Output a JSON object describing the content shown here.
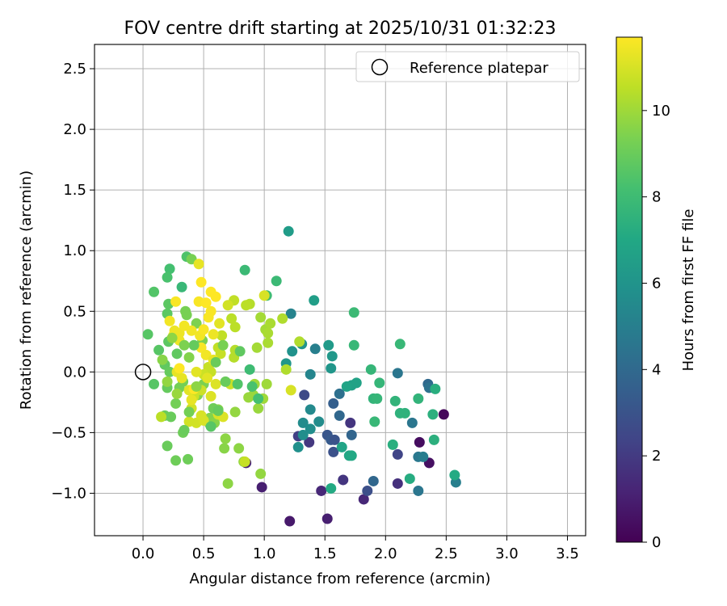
{
  "chart_data": {
    "type": "scatter",
    "title": "FOV centre drift starting at 2025/10/31 01:32:23",
    "xlabel": "Angular distance from reference (arcmin)",
    "ylabel": "Rotation from reference (arcmin)",
    "xlim": [
      -0.4,
      3.65
    ],
    "ylim": [
      -1.35,
      2.7
    ],
    "xticks": [
      0.0,
      0.5,
      1.0,
      1.5,
      2.0,
      2.5,
      3.0,
      3.5
    ],
    "xtick_labels": [
      "0.0",
      "0.5",
      "1.0",
      "1.5",
      "2.0",
      "2.5",
      "3.0",
      "3.5"
    ],
    "yticks": [
      -1.0,
      -0.5,
      0.0,
      0.5,
      1.0,
      1.5,
      2.0,
      2.5
    ],
    "ytick_labels": [
      "−1.0",
      "−0.5",
      "0.0",
      "0.5",
      "1.0",
      "1.5",
      "2.0",
      "2.5"
    ],
    "grid": true,
    "legend": {
      "position": "top-right",
      "entries": [
        "Reference platepar"
      ]
    },
    "reference_point": {
      "x": 0.0,
      "y": 0.0,
      "label": "Reference platepar"
    },
    "colorbar": {
      "label": "Hours from first FF file",
      "range": [
        0,
        11.7
      ],
      "colormap": "viridis",
      "ticks": [
        0,
        2,
        4,
        6,
        8,
        10
      ],
      "tick_labels": [
        "0",
        "2",
        "4",
        "6",
        "8",
        "10"
      ]
    },
    "points": [
      {
        "x": 2.48,
        "y": -0.35,
        "c": 0.2
      },
      {
        "x": 2.28,
        "y": -0.58,
        "c": 0.4
      },
      {
        "x": 2.36,
        "y": -0.75,
        "c": 0.5
      },
      {
        "x": 1.21,
        "y": -1.23,
        "c": 0.8
      },
      {
        "x": 1.52,
        "y": -1.21,
        "c": 1.0
      },
      {
        "x": 0.98,
        "y": -0.95,
        "c": 1.0
      },
      {
        "x": 1.47,
        "y": -0.98,
        "c": 1.3
      },
      {
        "x": 1.82,
        "y": -1.05,
        "c": 1.3
      },
      {
        "x": 0.85,
        "y": -0.75,
        "c": 1.2
      },
      {
        "x": 2.1,
        "y": -0.92,
        "c": 1.6
      },
      {
        "x": 1.65,
        "y": -0.89,
        "c": 1.8
      },
      {
        "x": 1.71,
        "y": -0.42,
        "c": 1.8
      },
      {
        "x": 1.37,
        "y": -0.58,
        "c": 1.9
      },
      {
        "x": 1.28,
        "y": -0.53,
        "c": 2.2
      },
      {
        "x": 2.1,
        "y": -0.68,
        "c": 2.4
      },
      {
        "x": 1.85,
        "y": -0.98,
        "c": 2.8
      },
      {
        "x": 1.33,
        "y": -0.19,
        "c": 2.6
      },
      {
        "x": 1.57,
        "y": -0.66,
        "c": 2.9
      },
      {
        "x": 1.52,
        "y": -0.52,
        "c": 3.1
      },
      {
        "x": 1.55,
        "y": -0.56,
        "c": 3.3
      },
      {
        "x": 1.58,
        "y": -0.56,
        "c": 3.0
      },
      {
        "x": 1.57,
        "y": -0.26,
        "c": 3.5
      },
      {
        "x": 1.72,
        "y": -0.52,
        "c": 3.8
      },
      {
        "x": 1.62,
        "y": -0.36,
        "c": 3.9
      },
      {
        "x": 1.9,
        "y": -0.9,
        "c": 3.9
      },
      {
        "x": 2.35,
        "y": -0.1,
        "c": 4.0
      },
      {
        "x": 1.62,
        "y": -0.18,
        "c": 4.3
      },
      {
        "x": 2.36,
        "y": -0.13,
        "c": 4.4
      },
      {
        "x": 2.1,
        "y": -0.01,
        "c": 4.6
      },
      {
        "x": 2.22,
        "y": -0.42,
        "c": 4.6
      },
      {
        "x": 2.27,
        "y": -0.98,
        "c": 4.6
      },
      {
        "x": 2.27,
        "y": -0.7,
        "c": 4.7
      },
      {
        "x": 2.31,
        "y": -0.7,
        "c": 4.9
      },
      {
        "x": 2.58,
        "y": -0.91,
        "c": 5.0
      },
      {
        "x": 1.42,
        "y": 0.19,
        "c": 5.0
      },
      {
        "x": 1.22,
        "y": 0.48,
        "c": 5.2
      },
      {
        "x": 1.38,
        "y": -0.02,
        "c": 5.3
      },
      {
        "x": 1.38,
        "y": -0.31,
        "c": 5.5
      },
      {
        "x": 1.32,
        "y": -0.42,
        "c": 5.6
      },
      {
        "x": 1.45,
        "y": -0.41,
        "c": 5.6
      },
      {
        "x": 1.38,
        "y": -0.47,
        "c": 5.7
      },
      {
        "x": 1.32,
        "y": -0.52,
        "c": 5.7
      },
      {
        "x": 1.28,
        "y": -0.62,
        "c": 5.8
      },
      {
        "x": 1.23,
        "y": 0.17,
        "c": 5.9
      },
      {
        "x": 1.31,
        "y": 0.23,
        "c": 6.0
      },
      {
        "x": 1.18,
        "y": 0.07,
        "c": 6.1
      },
      {
        "x": 1.55,
        "y": 0.03,
        "c": 6.1
      },
      {
        "x": 1.56,
        "y": 0.13,
        "c": 6.2
      },
      {
        "x": 1.53,
        "y": 0.22,
        "c": 6.3
      },
      {
        "x": 1.2,
        "y": 1.16,
        "c": 6.4
      },
      {
        "x": 1.41,
        "y": 0.59,
        "c": 6.5
      },
      {
        "x": 1.72,
        "y": -0.11,
        "c": 6.6
      },
      {
        "x": 1.76,
        "y": -0.09,
        "c": 6.7
      },
      {
        "x": 1.68,
        "y": -0.12,
        "c": 6.8
      },
      {
        "x": 1.64,
        "y": -0.62,
        "c": 6.8
      },
      {
        "x": 1.7,
        "y": -0.69,
        "c": 6.9
      },
      {
        "x": 1.72,
        "y": -0.69,
        "c": 7.0
      },
      {
        "x": 1.55,
        "y": -0.96,
        "c": 7.1
      },
      {
        "x": 2.57,
        "y": -0.85,
        "c": 7.1
      },
      {
        "x": 2.2,
        "y": -0.88,
        "c": 7.2
      },
      {
        "x": 2.06,
        "y": -0.6,
        "c": 7.3
      },
      {
        "x": 2.41,
        "y": -0.14,
        "c": 7.3
      },
      {
        "x": 2.39,
        "y": -0.35,
        "c": 7.4
      },
      {
        "x": 2.4,
        "y": -0.56,
        "c": 7.4
      },
      {
        "x": 2.12,
        "y": -0.34,
        "c": 7.5
      },
      {
        "x": 2.16,
        "y": -0.34,
        "c": 7.5
      },
      {
        "x": 2.27,
        "y": -0.22,
        "c": 7.6
      },
      {
        "x": 2.08,
        "y": -0.24,
        "c": 7.6
      },
      {
        "x": 1.9,
        "y": -0.22,
        "c": 7.6
      },
      {
        "x": 1.93,
        "y": -0.22,
        "c": 7.7
      },
      {
        "x": 1.95,
        "y": -0.09,
        "c": 7.7
      },
      {
        "x": 1.88,
        "y": 0.02,
        "c": 7.7
      },
      {
        "x": 1.91,
        "y": -0.41,
        "c": 7.8
      },
      {
        "x": 2.12,
        "y": 0.23,
        "c": 7.8
      },
      {
        "x": 1.74,
        "y": 0.22,
        "c": 7.8
      },
      {
        "x": 1.74,
        "y": 0.49,
        "c": 7.9
      },
      {
        "x": 1.1,
        "y": 0.75,
        "c": 7.9
      },
      {
        "x": 0.84,
        "y": 0.84,
        "c": 7.9
      },
      {
        "x": 1.02,
        "y": 0.63,
        "c": 8.0
      },
      {
        "x": 0.32,
        "y": 0.7,
        "c": 7.8
      },
      {
        "x": 0.22,
        "y": 0.85,
        "c": 8.2
      },
      {
        "x": 0.2,
        "y": 0.78,
        "c": 8.3
      },
      {
        "x": 0.36,
        "y": 0.95,
        "c": 8.4
      },
      {
        "x": 0.09,
        "y": 0.66,
        "c": 8.5
      },
      {
        "x": 0.04,
        "y": 0.31,
        "c": 8.6
      },
      {
        "x": 0.13,
        "y": 0.18,
        "c": 8.6
      },
      {
        "x": 0.09,
        "y": -0.1,
        "c": 8.6
      },
      {
        "x": 0.2,
        "y": 0.48,
        "c": 8.7
      },
      {
        "x": 0.21,
        "y": 0.56,
        "c": 8.7
      },
      {
        "x": 0.21,
        "y": 0.25,
        "c": 8.7
      },
      {
        "x": 0.28,
        "y": 0.15,
        "c": 8.8
      },
      {
        "x": 0.18,
        "y": 0.06,
        "c": 8.8
      },
      {
        "x": 0.22,
        "y": 0.0,
        "c": 8.9
      },
      {
        "x": 0.2,
        "y": -0.13,
        "c": 8.9
      },
      {
        "x": 0.18,
        "y": -0.36,
        "c": 9.0
      },
      {
        "x": 0.23,
        "y": -0.37,
        "c": 9.0
      },
      {
        "x": 0.2,
        "y": -0.61,
        "c": 9.0
      },
      {
        "x": 0.27,
        "y": -0.73,
        "c": 9.1
      },
      {
        "x": 0.37,
        "y": -0.72,
        "c": 9.1
      },
      {
        "x": 0.33,
        "y": -0.5,
        "c": 9.1
      },
      {
        "x": 0.27,
        "y": -0.26,
        "c": 9.2
      },
      {
        "x": 0.33,
        "y": -0.08,
        "c": 9.2
      },
      {
        "x": 0.3,
        "y": -0.13,
        "c": 9.2
      },
      {
        "x": 0.35,
        "y": 0.5,
        "c": 9.3
      },
      {
        "x": 0.36,
        "y": 0.47,
        "c": 9.3
      },
      {
        "x": 0.4,
        "y": 0.93,
        "c": 9.3
      },
      {
        "x": 0.44,
        "y": 0.4,
        "c": 9.4
      },
      {
        "x": 0.49,
        "y": 0.26,
        "c": 9.4
      },
      {
        "x": 0.5,
        "y": -0.1,
        "c": 9.4
      },
      {
        "x": 0.45,
        "y": -0.19,
        "c": 9.5
      },
      {
        "x": 0.55,
        "y": -0.38,
        "c": 9.5
      },
      {
        "x": 0.55,
        "y": -0.43,
        "c": 9.5
      },
      {
        "x": 0.59,
        "y": -0.42,
        "c": 9.6
      },
      {
        "x": 0.62,
        "y": -0.31,
        "c": 9.6
      },
      {
        "x": 0.67,
        "y": -0.63,
        "c": 9.6
      },
      {
        "x": 0.7,
        "y": -0.92,
        "c": 9.7
      },
      {
        "x": 0.68,
        "y": -0.55,
        "c": 9.7
      },
      {
        "x": 0.79,
        "y": -0.63,
        "c": 9.7
      },
      {
        "x": 0.97,
        "y": -0.84,
        "c": 9.8
      },
      {
        "x": 0.83,
        "y": -0.74,
        "c": 9.8
      },
      {
        "x": 0.76,
        "y": -0.33,
        "c": 9.8
      },
      {
        "x": 0.91,
        "y": -0.19,
        "c": 9.9
      },
      {
        "x": 0.87,
        "y": -0.21,
        "c": 9.9
      },
      {
        "x": 0.95,
        "y": -0.3,
        "c": 9.9
      },
      {
        "x": 0.99,
        "y": -0.22,
        "c": 10.0
      },
      {
        "x": 0.92,
        "y": -0.1,
        "c": 10.0
      },
      {
        "x": 1.02,
        "y": -0.1,
        "c": 10.0
      },
      {
        "x": 0.94,
        "y": 0.2,
        "c": 10.1
      },
      {
        "x": 0.97,
        "y": 0.45,
        "c": 10.1
      },
      {
        "x": 1.01,
        "y": 0.35,
        "c": 10.1
      },
      {
        "x": 1.03,
        "y": 0.32,
        "c": 10.2
      },
      {
        "x": 1.05,
        "y": 0.4,
        "c": 10.2
      },
      {
        "x": 1.03,
        "y": 0.24,
        "c": 10.2
      },
      {
        "x": 1.15,
        "y": 0.44,
        "c": 10.3
      },
      {
        "x": 1.18,
        "y": 0.02,
        "c": 10.3
      },
      {
        "x": 1.29,
        "y": 0.25,
        "c": 10.3
      },
      {
        "x": 0.75,
        "y": 0.12,
        "c": 10.4
      },
      {
        "x": 0.76,
        "y": 0.18,
        "c": 10.4
      },
      {
        "x": 0.88,
        "y": 0.56,
        "c": 10.4
      },
      {
        "x": 0.85,
        "y": 0.55,
        "c": 10.5
      },
      {
        "x": 0.76,
        "y": 0.37,
        "c": 10.5
      },
      {
        "x": 0.73,
        "y": 0.44,
        "c": 10.5
      },
      {
        "x": 0.75,
        "y": 0.59,
        "c": 10.6
      },
      {
        "x": 0.65,
        "y": 0.3,
        "c": 10.6
      },
      {
        "x": 0.62,
        "y": 0.2,
        "c": 10.6
      },
      {
        "x": 0.64,
        "y": 0.15,
        "c": 10.7
      },
      {
        "x": 0.56,
        "y": 0.0,
        "c": 10.7
      },
      {
        "x": 0.54,
        "y": 0.04,
        "c": 10.7
      },
      {
        "x": 0.5,
        "y": -0.02,
        "c": 10.8
      },
      {
        "x": 0.48,
        "y": -0.15,
        "c": 10.8
      },
      {
        "x": 0.42,
        "y": -0.2,
        "c": 10.8
      },
      {
        "x": 0.4,
        "y": -0.3,
        "c": 10.9
      },
      {
        "x": 0.38,
        "y": -0.41,
        "c": 10.9
      },
      {
        "x": 0.44,
        "y": -0.42,
        "c": 10.9
      },
      {
        "x": 0.5,
        "y": -0.4,
        "c": 11.0
      },
      {
        "x": 0.48,
        "y": -0.36,
        "c": 11.0
      },
      {
        "x": 0.62,
        "y": -0.35,
        "c": 11.0
      },
      {
        "x": 0.66,
        "y": -0.37,
        "c": 11.1
      },
      {
        "x": 0.6,
        "y": -0.1,
        "c": 11.1
      },
      {
        "x": 0.56,
        "y": -0.2,
        "c": 11.1
      },
      {
        "x": 0.53,
        "y": -0.05,
        "c": 11.2
      },
      {
        "x": 0.44,
        "y": 0.0,
        "c": 11.2
      },
      {
        "x": 0.38,
        "y": -0.15,
        "c": 11.2
      },
      {
        "x": 0.4,
        "y": -0.23,
        "c": 11.3
      },
      {
        "x": 0.32,
        "y": -0.05,
        "c": 11.3
      },
      {
        "x": 0.28,
        "y": 0.0,
        "c": 11.3
      },
      {
        "x": 0.3,
        "y": 0.26,
        "c": 11.4
      },
      {
        "x": 0.26,
        "y": 0.34,
        "c": 11.4
      },
      {
        "x": 0.3,
        "y": 0.32,
        "c": 11.4
      },
      {
        "x": 0.34,
        "y": 0.38,
        "c": 11.5
      },
      {
        "x": 0.4,
        "y": 0.34,
        "c": 11.5
      },
      {
        "x": 0.47,
        "y": 0.3,
        "c": 11.5
      },
      {
        "x": 0.5,
        "y": 0.35,
        "c": 11.6
      },
      {
        "x": 0.54,
        "y": 0.45,
        "c": 11.6
      },
      {
        "x": 0.46,
        "y": 0.58,
        "c": 11.6
      },
      {
        "x": 0.52,
        "y": 0.57,
        "c": 11.7
      },
      {
        "x": 0.6,
        "y": 0.62,
        "c": 11.7
      },
      {
        "x": 0.56,
        "y": 0.66,
        "c": 11.7
      },
      {
        "x": 0.48,
        "y": 0.74,
        "c": 11.7
      },
      {
        "x": 0.56,
        "y": 0.5,
        "c": 11.6
      },
      {
        "x": 0.22,
        "y": 0.42,
        "c": 11.5
      },
      {
        "x": 0.25,
        "y": 0.3,
        "c": 11.4
      },
      {
        "x": 0.48,
        "y": 0.2,
        "c": 11.6
      },
      {
        "x": 0.52,
        "y": 0.14,
        "c": 11.5
      },
      {
        "x": 0.58,
        "y": 0.1,
        "c": 11.3
      },
      {
        "x": 1.22,
        "y": -0.15,
        "c": 11.0
      },
      {
        "x": 0.72,
        "y": -0.1,
        "c": 10.8
      },
      {
        "x": 0.15,
        "y": -0.37,
        "c": 10.5
      },
      {
        "x": 0.27,
        "y": 0.58,
        "c": 11.6
      },
      {
        "x": 0.46,
        "y": 0.89,
        "c": 11.3
      },
      {
        "x": 1.0,
        "y": 0.63,
        "c": 11.0
      },
      {
        "x": 0.84,
        "y": -0.74,
        "c": 10.7
      },
      {
        "x": 0.3,
        "y": 0.03,
        "c": 11.7
      },
      {
        "x": 0.42,
        "y": -0.14,
        "c": 11.7
      },
      {
        "x": 0.58,
        "y": 0.31,
        "c": 11.4
      },
      {
        "x": 0.63,
        "y": 0.4,
        "c": 11.2
      },
      {
        "x": 0.7,
        "y": 0.55,
        "c": 10.9
      },
      {
        "x": 0.66,
        "y": 0.22,
        "c": 9.3
      },
      {
        "x": 0.6,
        "y": 0.08,
        "c": 9.0
      },
      {
        "x": 0.68,
        "y": -0.08,
        "c": 9.0
      },
      {
        "x": 0.78,
        "y": -0.1,
        "c": 8.5
      },
      {
        "x": 0.9,
        "y": -0.12,
        "c": 8.3
      },
      {
        "x": 0.95,
        "y": -0.22,
        "c": 8.2
      },
      {
        "x": 0.88,
        "y": 0.02,
        "c": 8.0
      },
      {
        "x": 0.8,
        "y": 0.17,
        "c": 8.8
      },
      {
        "x": 0.58,
        "y": -0.3,
        "c": 9.1
      },
      {
        "x": 0.62,
        "y": -0.32,
        "c": 8.9
      },
      {
        "x": 0.56,
        "y": -0.45,
        "c": 8.6
      },
      {
        "x": 0.38,
        "y": -0.33,
        "c": 9.2
      },
      {
        "x": 0.34,
        "y": -0.48,
        "c": 9.0
      },
      {
        "x": 0.42,
        "y": 0.22,
        "c": 8.9
      },
      {
        "x": 0.34,
        "y": 0.22,
        "c": 9.4
      },
      {
        "x": 0.38,
        "y": 0.12,
        "c": 9.5
      },
      {
        "x": 0.24,
        "y": 0.28,
        "c": 9.7
      },
      {
        "x": 0.16,
        "y": 0.1,
        "c": 9.6
      },
      {
        "x": 0.2,
        "y": -0.08,
        "c": 9.8
      },
      {
        "x": 0.28,
        "y": -0.18,
        "c": 9.9
      },
      {
        "x": 0.44,
        "y": -0.12,
        "c": 9.7
      }
    ]
  }
}
